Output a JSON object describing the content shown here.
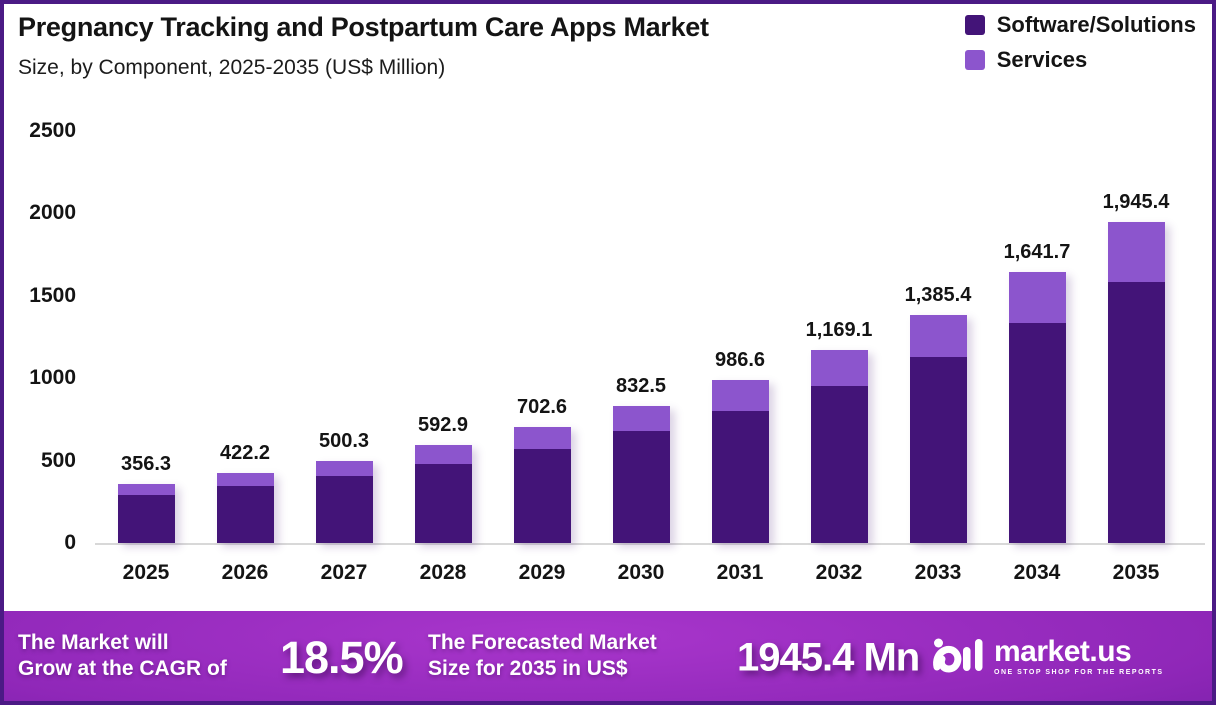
{
  "header": {
    "title": "Pregnancy Tracking and Postpartum Care Apps Market",
    "subtitle": "Size, by Component, 2025-2035 (US$ Million)"
  },
  "legend": {
    "items": [
      {
        "label": "Software/Solutions",
        "color": "#431478"
      },
      {
        "label": "Services",
        "color": "#8c55cd"
      }
    ]
  },
  "chart_data": {
    "type": "bar",
    "stacked": true,
    "title": "Pregnancy Tracking and Postpartum Care Apps Market Size, by Component, 2025-2035 (US$ Million)",
    "categories": [
      "2025",
      "2026",
      "2027",
      "2028",
      "2029",
      "2030",
      "2031",
      "2032",
      "2033",
      "2034",
      "2035"
    ],
    "series": [
      {
        "name": "Software/Solutions",
        "color": "#431478",
        "values": [
          289.7,
          343.2,
          406.7,
          482.0,
          571.2,
          676.8,
          802.1,
          950.5,
          1126.3,
          1334.7,
          1581.6
        ]
      },
      {
        "name": "Services",
        "color": "#8c55cd",
        "values": [
          66.6,
          79.0,
          93.6,
          110.9,
          131.4,
          155.7,
          184.5,
          218.6,
          259.1,
          307.0,
          363.8
        ]
      }
    ],
    "totals": [
      356.3,
      422.2,
      500.3,
      592.9,
      702.6,
      832.5,
      986.6,
      1169.1,
      1385.4,
      1641.7,
      1945.4
    ],
    "total_labels": [
      "356.3",
      "422.2",
      "500.3",
      "592.9",
      "702.6",
      "832.5",
      "986.6",
      "1,169.1",
      "1,385.4",
      "1,641.7",
      "1,945.4"
    ],
    "ylabel": "US$ Million",
    "ylim": [
      0,
      2500
    ],
    "yticks": [
      0,
      500,
      1000,
      1500,
      2000,
      2500
    ],
    "grid": false,
    "legend_position": "top-right"
  },
  "footer": {
    "cagr_line1": "The Market will",
    "cagr_line2": "Grow at the CAGR of",
    "cagr_value": "18.5%",
    "forecast_line1": "The Forecasted Market",
    "forecast_line2": "Size for 2035 in US$",
    "forecast_value": "1945.4 Mn",
    "logo_text": "market.us",
    "logo_tagline": "ONE STOP SHOP FOR THE REPORTS"
  }
}
